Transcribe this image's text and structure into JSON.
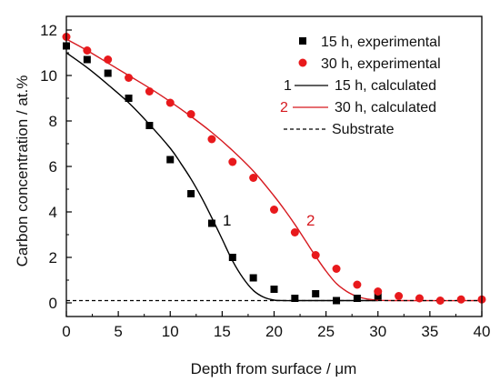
{
  "chart_data": {
    "type": "scatter",
    "xlabel": "Depth from surface / μm",
    "ylabel": "Carbon concentration / at.%",
    "xlim": [
      0,
      40
    ],
    "ylim": [
      -0.6,
      12.6
    ],
    "xticks": [
      "0",
      "5",
      "10",
      "15",
      "20",
      "25",
      "30",
      "35",
      "40"
    ],
    "yticks": [
      "0",
      "2",
      "4",
      "6",
      "8",
      "10",
      "12"
    ],
    "legend_position": "top-right",
    "series": [
      {
        "name": "15 h, experimental",
        "kind": "points",
        "marker": "square",
        "color": "#000000",
        "x": [
          0,
          2,
          4,
          6,
          8,
          10,
          12,
          14,
          16,
          18,
          20,
          22,
          24,
          26,
          28,
          30
        ],
        "y": [
          11.3,
          10.7,
          10.1,
          9.0,
          7.8,
          6.3,
          4.8,
          3.5,
          2.0,
          1.1,
          0.6,
          0.2,
          0.4,
          0.1,
          0.2,
          0.3
        ]
      },
      {
        "name": "30 h, experimental",
        "kind": "points",
        "marker": "circle",
        "color": "#e8191c",
        "x": [
          0,
          2,
          4,
          6,
          8,
          10,
          12,
          14,
          16,
          18,
          20,
          22,
          24,
          26,
          28,
          30,
          32,
          34,
          36,
          38,
          40
        ],
        "y": [
          11.7,
          11.1,
          10.7,
          9.9,
          9.3,
          8.8,
          8.3,
          7.2,
          6.2,
          5.5,
          4.1,
          3.1,
          2.1,
          1.5,
          0.8,
          0.5,
          0.3,
          0.2,
          0.1,
          0.15,
          0.15
        ]
      },
      {
        "name": "15 h, calculated",
        "kind": "line",
        "color": "#000000",
        "label": "1",
        "x": [
          0,
          2,
          4,
          6,
          8,
          10,
          11,
          12,
          13,
          14,
          15,
          16,
          17,
          18,
          19,
          20,
          21,
          22,
          25,
          30
        ],
        "y": [
          11.0,
          10.35,
          9.6,
          8.8,
          7.85,
          6.8,
          6.15,
          5.45,
          4.65,
          3.75,
          2.8,
          1.85,
          1.1,
          0.55,
          0.25,
          0.12,
          0.1,
          0.1,
          0.1,
          0.1
        ]
      },
      {
        "name": "30 h, calculated",
        "kind": "line",
        "color": "#d6191f",
        "label": "2",
        "x": [
          0,
          2,
          4,
          6,
          8,
          10,
          12,
          14,
          16,
          18,
          20,
          21,
          22,
          23,
          24,
          25,
          26,
          27,
          28,
          29,
          30,
          32,
          40
        ],
        "y": [
          11.6,
          11.1,
          10.55,
          10.0,
          9.45,
          8.85,
          8.2,
          7.5,
          6.7,
          5.8,
          4.7,
          4.1,
          3.45,
          2.75,
          2.05,
          1.4,
          0.85,
          0.5,
          0.28,
          0.17,
          0.12,
          0.1,
          0.1
        ]
      },
      {
        "name": "Substrate",
        "kind": "dashed",
        "color": "#000000",
        "x": [
          0,
          40
        ],
        "y": [
          0.1,
          0.1
        ]
      }
    ]
  }
}
